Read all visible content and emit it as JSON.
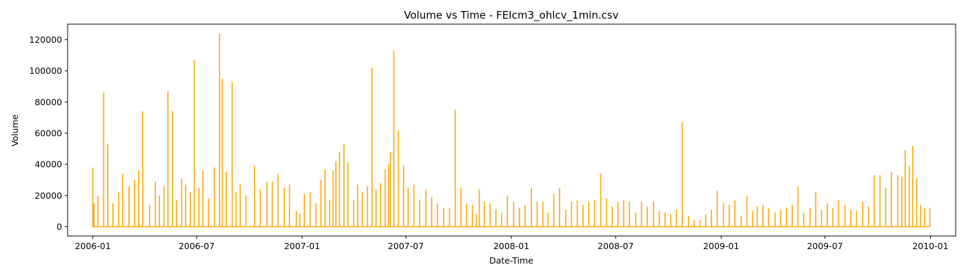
{
  "chart_data": {
    "type": "line",
    "title": "Volume vs Time - FEIcm3_ohlcv_1min.csv",
    "xlabel": "Date-Time",
    "ylabel": "Volume",
    "xlim": [
      "2005-11-18",
      "2010-02-14"
    ],
    "ylim": [
      -6000,
      130000
    ],
    "grid": false,
    "line_color": "#ffa500",
    "x_ticks": [
      {
        "date": "2006-01-01",
        "label": "2006-01"
      },
      {
        "date": "2006-07-01",
        "label": "2006-07"
      },
      {
        "date": "2007-01-01",
        "label": "2007-01"
      },
      {
        "date": "2007-07-01",
        "label": "2007-07"
      },
      {
        "date": "2008-01-01",
        "label": "2008-01"
      },
      {
        "date": "2008-07-01",
        "label": "2008-07"
      },
      {
        "date": "2009-01-01",
        "label": "2009-01"
      },
      {
        "date": "2009-07-01",
        "label": "2009-07"
      },
      {
        "date": "2010-01-01",
        "label": "2010-01"
      }
    ],
    "y_ticks": [
      {
        "value": 0,
        "label": "0"
      },
      {
        "value": 20000,
        "label": "20000"
      },
      {
        "value": 40000,
        "label": "40000"
      },
      {
        "value": 60000,
        "label": "60000"
      },
      {
        "value": 80000,
        "label": "80000"
      },
      {
        "value": 100000,
        "label": "100000"
      },
      {
        "value": 120000,
        "label": "120000"
      }
    ],
    "series": [
      {
        "x": [
          "2006-01-01",
          "2006-01-03",
          "2006-01-10",
          "2006-01-20",
          "2006-01-27",
          "2006-02-05",
          "2006-02-15",
          "2006-02-22",
          "2006-03-05",
          "2006-03-15",
          "2006-03-22",
          "2006-03-29",
          "2006-04-10",
          "2006-04-20",
          "2006-04-27",
          "2006-05-05",
          "2006-05-12",
          "2006-05-20",
          "2006-05-27",
          "2006-06-05",
          "2006-06-12",
          "2006-06-20",
          "2006-06-27",
          "2006-07-05",
          "2006-07-12",
          "2006-07-22",
          "2006-08-01",
          "2006-08-10",
          "2006-08-15",
          "2006-08-22",
          "2006-09-01",
          "2006-09-08",
          "2006-09-15",
          "2006-09-25",
          "2006-10-10",
          "2006-10-20",
          "2006-11-01",
          "2006-11-10",
          "2006-11-20",
          "2006-12-01",
          "2006-12-10",
          "2006-12-22",
          "2006-12-28",
          "2007-01-05",
          "2007-01-15",
          "2007-01-25",
          "2007-02-03",
          "2007-02-10",
          "2007-02-18",
          "2007-02-24",
          "2007-03-01",
          "2007-03-07",
          "2007-03-15",
          "2007-03-22",
          "2007-04-01",
          "2007-04-08",
          "2007-04-16",
          "2007-04-25",
          "2007-05-03",
          "2007-05-10",
          "2007-05-18",
          "2007-05-26",
          "2007-06-01",
          "2007-06-04",
          "2007-06-10",
          "2007-06-18",
          "2007-06-27",
          "2007-07-05",
          "2007-07-15",
          "2007-07-25",
          "2007-08-05",
          "2007-08-15",
          "2007-08-25",
          "2007-09-05",
          "2007-09-15",
          "2007-09-25",
          "2007-10-05",
          "2007-10-15",
          "2007-10-25",
          "2007-11-01",
          "2007-11-06",
          "2007-11-15",
          "2007-11-25",
          "2007-12-05",
          "2007-12-15",
          "2007-12-25",
          "2008-01-05",
          "2008-01-15",
          "2008-01-25",
          "2008-02-05",
          "2008-02-15",
          "2008-02-25",
          "2008-03-05",
          "2008-03-15",
          "2008-03-25",
          "2008-04-05",
          "2008-04-15",
          "2008-04-25",
          "2008-05-05",
          "2008-05-15",
          "2008-05-25",
          "2008-06-05",
          "2008-06-15",
          "2008-06-25",
          "2008-07-05",
          "2008-07-15",
          "2008-07-25",
          "2008-08-05",
          "2008-08-15",
          "2008-08-25",
          "2008-09-05",
          "2008-09-15",
          "2008-09-25",
          "2008-10-05",
          "2008-10-15",
          "2008-10-25",
          "2008-11-05",
          "2008-11-15",
          "2008-11-25",
          "2008-12-05",
          "2008-12-15",
          "2008-12-25",
          "2009-01-05",
          "2009-01-15",
          "2009-01-25",
          "2009-02-05",
          "2009-02-15",
          "2009-02-25",
          "2009-03-05",
          "2009-03-15",
          "2009-03-25",
          "2009-04-05",
          "2009-04-15",
          "2009-04-25",
          "2009-05-05",
          "2009-05-15",
          "2009-05-25",
          "2009-06-05",
          "2009-06-15",
          "2009-06-25",
          "2009-07-05",
          "2009-07-15",
          "2009-07-25",
          "2009-08-05",
          "2009-08-15",
          "2009-08-25",
          "2009-09-05",
          "2009-09-15",
          "2009-09-25",
          "2009-10-05",
          "2009-10-15",
          "2009-10-25",
          "2009-11-05",
          "2009-11-12",
          "2009-11-18",
          "2009-11-25",
          "2009-12-01",
          "2009-12-08",
          "2009-12-15",
          "2009-12-22",
          "2009-12-31"
        ],
        "y": [
          38000,
          15000,
          19500,
          86000,
          53000,
          15000,
          22000,
          34000,
          26000,
          30000,
          36000,
          74000,
          14000,
          29000,
          20000,
          26000,
          87000,
          74000,
          17000,
          31000,
          27000,
          22000,
          107000,
          25000,
          36000,
          18000,
          38000,
          124000,
          95000,
          35000,
          93000,
          22000,
          27000,
          20000,
          39000,
          24000,
          29000,
          29000,
          34000,
          25000,
          27000,
          10000,
          8000,
          21000,
          22000,
          15000,
          30000,
          37000,
          17000,
          36000,
          42000,
          48000,
          53000,
          41000,
          17000,
          27000,
          22000,
          26000,
          102000,
          24000,
          28000,
          37000,
          40000,
          48000,
          113000,
          62000,
          39000,
          25000,
          27000,
          17000,
          24000,
          19000,
          15000,
          12000,
          12000,
          75000,
          25000,
          15000,
          14000,
          8000,
          24000,
          16000,
          15000,
          11000,
          9000,
          20000,
          16000,
          12000,
          14000,
          25000,
          16000,
          16000,
          9000,
          21000,
          25000,
          11000,
          16000,
          17000,
          14000,
          16000,
          17000,
          34000,
          18000,
          13000,
          16000,
          17000,
          16000,
          9000,
          16000,
          13000,
          16000,
          10000,
          9000,
          8000,
          11000,
          67000,
          7000,
          4000,
          4000,
          8000,
          11000,
          23000,
          15000,
          14000,
          17000,
          7000,
          20000,
          10000,
          13000,
          14000,
          12000,
          9000,
          11000,
          12000,
          14000,
          26000,
          9000,
          12000,
          22000,
          11000,
          15000,
          12000,
          17000,
          14000,
          11000,
          10000,
          16000,
          13000,
          33000,
          33000,
          25000,
          35000,
          33000,
          32000,
          49000,
          39000,
          52000,
          31000,
          14000,
          12000,
          12000
        ]
      }
    ]
  }
}
